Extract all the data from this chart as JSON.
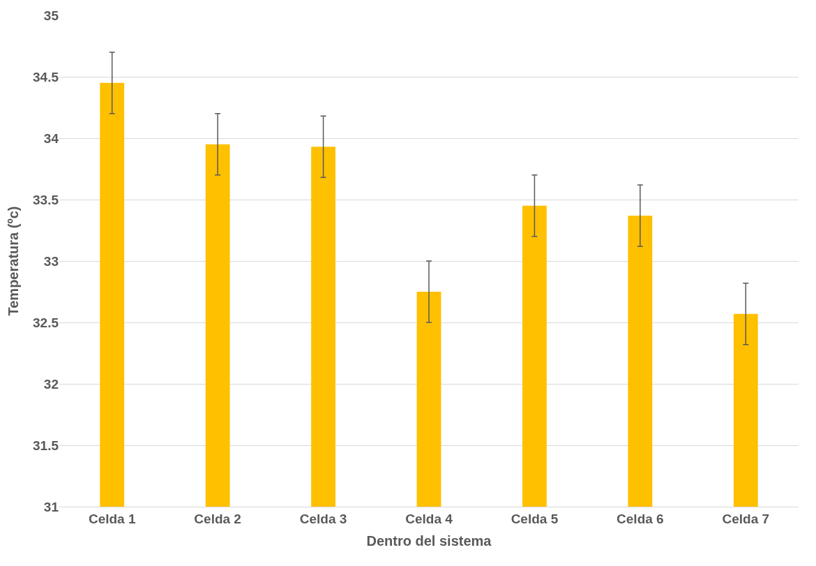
{
  "chart_data": {
    "type": "bar",
    "xlabel": "Dentro del sistema",
    "ylabel": "Temperatura (ºc)",
    "categories": [
      "Celda 1",
      "Celda 2",
      "Celda 3",
      "Celda 4",
      "Celda 5",
      "Celda 6",
      "Celda 7"
    ],
    "values": [
      34.45,
      33.95,
      33.93,
      32.75,
      33.45,
      33.37,
      32.57
    ],
    "errors": [
      0.25,
      0.25,
      0.25,
      0.25,
      0.25,
      0.25,
      0.25
    ],
    "color": "#ffc000",
    "ylim": [
      31,
      35
    ],
    "yticks": [
      31,
      31.5,
      32,
      32.5,
      33,
      33.5,
      34,
      34.5,
      35
    ],
    "grid": "y",
    "legend": false
  }
}
